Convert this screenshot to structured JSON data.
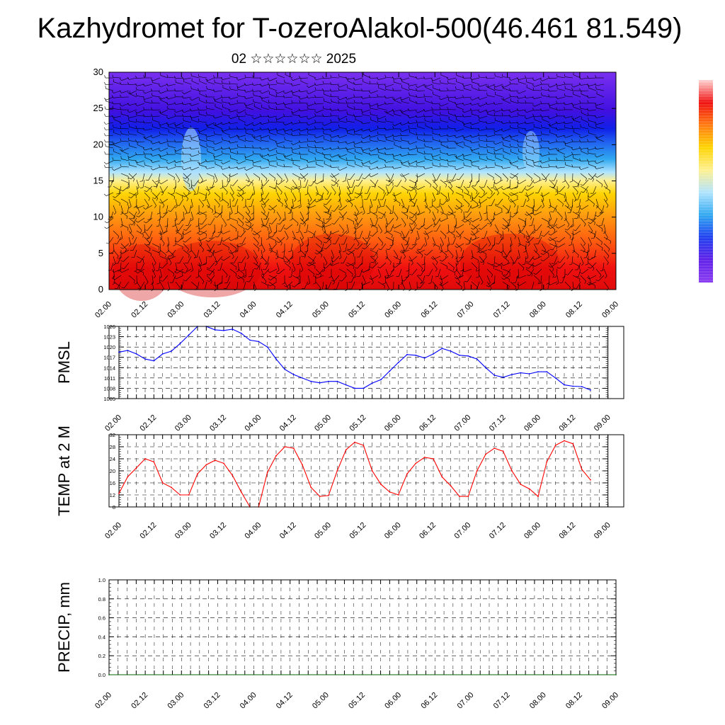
{
  "page": {
    "title": "Kazhydromet for T-ozeroAlakol-500(46.461 81.549)",
    "date_line": "02 ☆☆☆☆☆☆ 2025"
  },
  "colors": {
    "cross_section_scale": [
      "#ffd2d2",
      "#f01010",
      "#ff7a10",
      "#ffd400",
      "#fff090",
      "#b0e4ff",
      "#30a8f0",
      "#2040f0",
      "#6020e8",
      "#8a3cf0"
    ],
    "pmsl_line": "#0000ff",
    "temp_line": "#ff0000",
    "precip_line": "#006400",
    "wind_barbs": "#000000"
  },
  "chart_data": [
    {
      "type": "heatmap",
      "panel": "cross-section",
      "ylim": [
        0,
        30
      ],
      "yticks": [
        "0",
        "5",
        "10",
        "15",
        "20",
        "25",
        "30"
      ],
      "xticks": [
        "02.00",
        "02.12",
        "03.00",
        "03.12",
        "04.00",
        "04.12",
        "05.00",
        "05.12",
        "06.00",
        "06.12",
        "07.00",
        "07.12",
        "08.00",
        "08.12",
        "09.00"
      ],
      "xlim": [
        0,
        168
      ],
      "overlay": "wind barbs",
      "colorbar": "vertical, right"
    },
    {
      "type": "line",
      "panel": "pmsl",
      "ylabel": "PMSL",
      "ylim": [
        1005,
        1026
      ],
      "yticks": [
        "1005",
        "1008",
        "1011",
        "1014",
        "1017",
        "1020",
        "1023",
        "1026"
      ],
      "xticks": [
        "02.00",
        "02.12",
        "03.00",
        "03.12",
        "04.00",
        "04.12",
        "05.00",
        "05.12",
        "06.00",
        "06.12",
        "07.00",
        "07.12",
        "08.00",
        "08.12",
        "09.00"
      ],
      "xlim": [
        0,
        168
      ],
      "grid": true,
      "series": [
        {
          "x": [
            0,
            3,
            6,
            9,
            12,
            15,
            18,
            21,
            24,
            27,
            30,
            33,
            36,
            39,
            42,
            45,
            48,
            51,
            54,
            57,
            60,
            63,
            66,
            69,
            72,
            75,
            78,
            81,
            84,
            87,
            90,
            93,
            96,
            99,
            102,
            105,
            108,
            111,
            114,
            117,
            120,
            123,
            126,
            129,
            132,
            135,
            138,
            141,
            144,
            147,
            150,
            153,
            156,
            159,
            162
          ],
          "values": [
            1018.5,
            1019,
            1018,
            1016.5,
            1016,
            1018,
            1018.8,
            1021,
            1023.5,
            1026,
            1026,
            1025,
            1024.8,
            1025.2,
            1024,
            1022,
            1021.6,
            1020,
            1016.5,
            1013.5,
            1012,
            1011,
            1010,
            1009.6,
            1010,
            1010,
            1009,
            1008,
            1008,
            1009.5,
            1010.5,
            1013,
            1015.5,
            1017.8,
            1017.6,
            1016.8,
            1018,
            1019.6,
            1018.8,
            1017.6,
            1017.4,
            1016.5,
            1014,
            1011.8,
            1011.2,
            1012,
            1012.5,
            1012.2,
            1012.8,
            1012.8,
            1011,
            1009,
            1008.6,
            1008.5,
            1007.5
          ]
        }
      ]
    },
    {
      "type": "line",
      "panel": "temp",
      "ylabel": "TEMP at 2 M",
      "ylim": [
        8,
        32
      ],
      "yticks": [
        "8",
        "12",
        "16",
        "20",
        "24",
        "28",
        "32"
      ],
      "xticks": [
        "02.00",
        "02.12",
        "03.00",
        "03.12",
        "04.00",
        "04.12",
        "05.00",
        "05.12",
        "06.00",
        "06.12",
        "07.00",
        "07.12",
        "08.00",
        "08.12",
        "09.00"
      ],
      "xlim": [
        0,
        168
      ],
      "grid": true,
      "series": [
        {
          "x": [
            0,
            3,
            6,
            9,
            12,
            15,
            18,
            21,
            24,
            27,
            30,
            33,
            36,
            39,
            42,
            45,
            48,
            51,
            54,
            57,
            60,
            63,
            66,
            69,
            72,
            75,
            78,
            81,
            84,
            87,
            90,
            93,
            96,
            99,
            102,
            105,
            108,
            111,
            114,
            117,
            120,
            123,
            126,
            129,
            132,
            135,
            138,
            141,
            144,
            147,
            150,
            153,
            156,
            159,
            162
          ],
          "values": [
            12.5,
            18,
            21,
            24,
            23,
            16,
            14.5,
            12,
            12,
            19,
            22,
            23.5,
            22.5,
            18.5,
            13,
            8,
            8,
            19.5,
            25,
            28,
            27.5,
            22,
            14.5,
            11.5,
            11.8,
            20,
            27,
            29.5,
            28.5,
            20,
            15.5,
            13,
            12,
            19,
            22.5,
            24.5,
            24,
            18,
            15,
            11.5,
            11.5,
            20,
            25.5,
            27.5,
            26.5,
            20,
            15.5,
            14,
            11.5,
            23,
            28.5,
            30,
            29,
            20.5,
            17
          ]
        }
      ]
    },
    {
      "type": "line",
      "panel": "precip",
      "ylabel": "PRECIP, mm",
      "ylim": [
        0,
        1
      ],
      "yticks": [
        "0.0",
        "0.2",
        "0.4",
        "0.6",
        "0.8",
        "1.0"
      ],
      "xticks": [
        "02.00",
        "02.12",
        "03.00",
        "03.12",
        "04.00",
        "04.12",
        "05.00",
        "05.12",
        "06.00",
        "06.12",
        "07.00",
        "07.12",
        "08.00",
        "08.12",
        "09.00"
      ],
      "xlim": [
        0,
        168
      ],
      "grid": true,
      "series": [
        {
          "x": [
            0,
            168
          ],
          "values": [
            0,
            0
          ]
        }
      ]
    }
  ]
}
